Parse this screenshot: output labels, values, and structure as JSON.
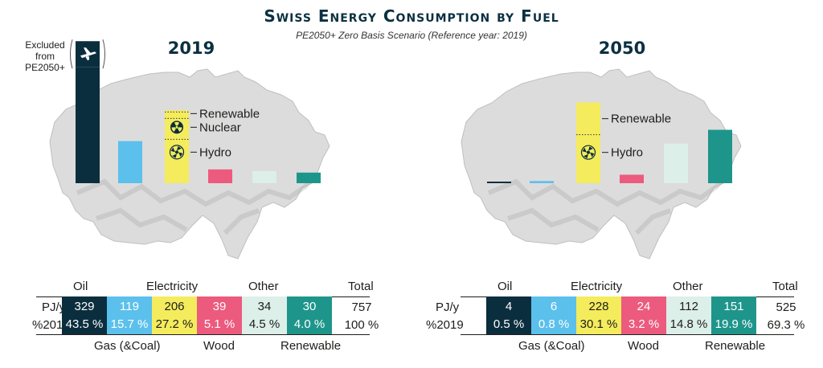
{
  "title": "Swiss Energy Consumption by Fuel",
  "subtitle": "PE2050+ Zero Basis Scenario (Reference year: 2019)",
  "colors": {
    "Oil": "#0b2e3e",
    "Gas (&Coal)": "#5bc0ec",
    "Electricity": "#f4ec5c",
    "Wood": "#ec5a7e",
    "Other": "#dcefe8",
    "Renewable": "#1e958a"
  },
  "annotation": {
    "excluded": [
      "Excluded",
      "from",
      "PE2050+"
    ],
    "renewable": "Renewable",
    "nuclear": "Nuclear",
    "hydro": "Hydro"
  },
  "table_labels": {
    "pj": "PJ/y",
    "pct": "%2019",
    "total": "Total",
    "top": [
      "Oil",
      "Electricity",
      "Other"
    ],
    "bottom": [
      "Gas (&Coal)",
      "Wood",
      "Renewable"
    ]
  },
  "chart_data": [
    {
      "type": "bar",
      "title": "2019",
      "categories": [
        "Oil",
        "Gas (&Coal)",
        "Electricity",
        "Wood",
        "Other",
        "Renewable"
      ],
      "values": [
        329,
        119,
        206,
        39,
        34,
        30
      ],
      "percent_labels": [
        "43.5 %",
        "15.7 %",
        "27.2 %",
        "5.1 %",
        "4.5 %",
        "4.0 %"
      ],
      "total": "757",
      "total_pct": "100 %",
      "electricity_breakdown": [
        "Renewable",
        "Nuclear",
        "Hydro"
      ]
    },
    {
      "type": "bar",
      "title": "2050",
      "categories": [
        "Oil",
        "Gas (&Coal)",
        "Electricity",
        "Wood",
        "Other",
        "Renewable"
      ],
      "values": [
        4,
        6,
        228,
        24,
        112,
        151
      ],
      "percent_labels": [
        "0.5 %",
        "0.8 %",
        "30.1 %",
        "3.2 %",
        "14.8 %",
        "19.9 %"
      ],
      "total": "525",
      "total_pct": "69.3 %",
      "electricity_breakdown": [
        "Renewable",
        "Hydro"
      ]
    }
  ]
}
